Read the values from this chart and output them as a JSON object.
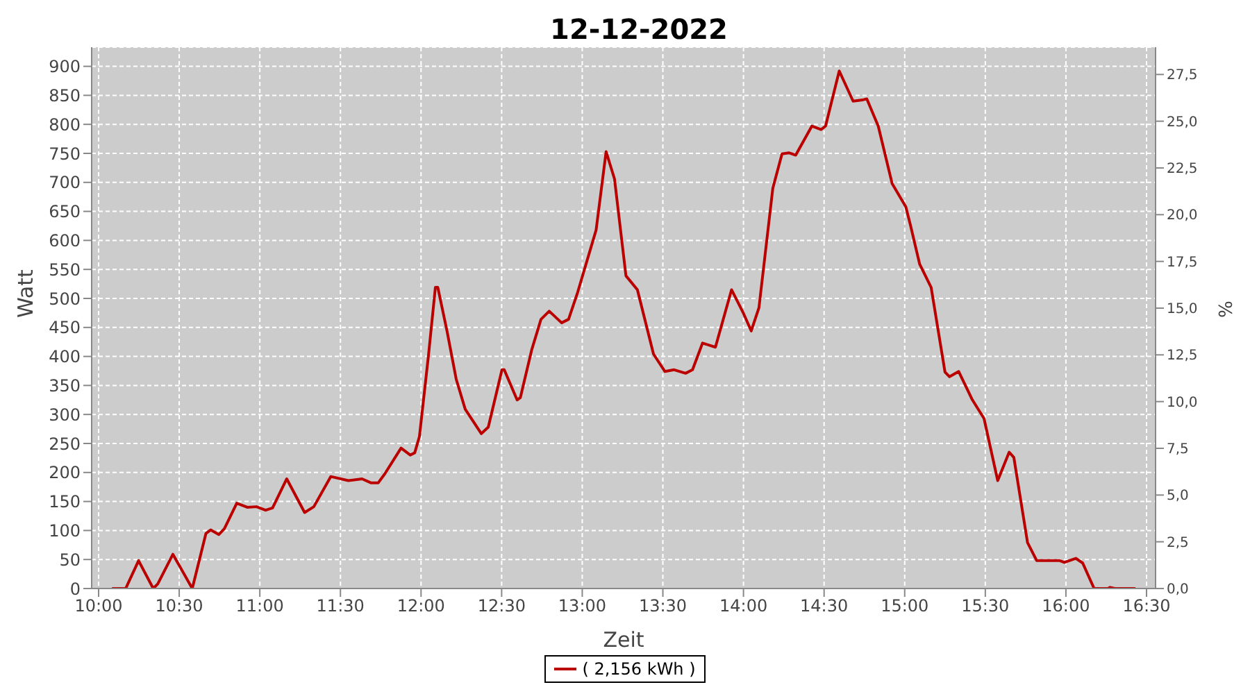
{
  "chart_data": {
    "type": "line",
    "title": "12-12-2022",
    "xlabel": "Zeit",
    "ylabel": "Watt",
    "y2label": "%",
    "x": [
      10.083,
      10.168,
      10.248,
      10.339,
      10.367,
      10.461,
      10.581,
      10.666,
      10.695,
      10.746,
      10.78,
      10.857,
      10.922,
      10.979,
      11.036,
      11.079,
      11.167,
      11.278,
      11.335,
      11.44,
      11.549,
      11.634,
      11.691,
      11.734,
      11.776,
      11.876,
      11.933,
      11.961,
      11.99,
      12.047,
      12.089,
      12.104,
      12.161,
      12.218,
      12.274,
      12.374,
      12.417,
      12.502,
      12.516,
      12.596,
      12.616,
      12.687,
      12.744,
      12.795,
      12.872,
      12.915,
      12.972,
      13.086,
      13.148,
      13.2,
      13.271,
      13.342,
      13.442,
      13.513,
      13.57,
      13.641,
      13.684,
      13.746,
      13.826,
      13.926,
      13.997,
      14.048,
      14.096,
      14.182,
      14.239,
      14.281,
      14.324,
      14.424,
      14.481,
      14.509,
      14.594,
      14.68,
      14.737,
      14.765,
      14.836,
      14.922,
      15.007,
      15.036,
      15.093,
      15.164,
      15.25,
      15.278,
      15.335,
      15.42,
      15.492,
      15.577,
      15.648,
      15.677,
      15.762,
      15.819,
      15.962,
      15.99,
      16.061,
      16.104,
      16.175,
      16.26,
      16.274,
      16.303,
      16.431
    ],
    "series": [
      {
        "name": "( 2,156 kWh )",
        "color": "#bb0000",
        "values": [
          0,
          0,
          48,
          0,
          8,
          59,
          0,
          95,
          101,
          93,
          103,
          147,
          140,
          141,
          135,
          139,
          189,
          131,
          141,
          193,
          186,
          189,
          182,
          182,
          198,
          242,
          230,
          234,
          262,
          404,
          519,
          519,
          444,
          361,
          309,
          267,
          278,
          377,
          377,
          325,
          329,
          412,
          464,
          478,
          458,
          464,
          511,
          618,
          753,
          706,
          539,
          515,
          404,
          374,
          377,
          371,
          377,
          423,
          416,
          515,
          476,
          444,
          484,
          690,
          749,
          751,
          747,
          797,
          791,
          797,
          892,
          840,
          842,
          844,
          797,
          698,
          658,
          626,
          559,
          519,
          373,
          365,
          374,
          325,
          293,
          186,
          235,
          226,
          79,
          48,
          48,
          45,
          52,
          44,
          0,
          0,
          2,
          0,
          0
        ]
      }
    ],
    "xlim": [
      9.957,
      16.556
    ],
    "xticks": [
      {
        "value": 10,
        "label": "10:00"
      },
      {
        "value": 10.5,
        "label": "10:30"
      },
      {
        "value": 11,
        "label": "11:00"
      },
      {
        "value": 11.5,
        "label": "11:30"
      },
      {
        "value": 12,
        "label": "12:00"
      },
      {
        "value": 12.5,
        "label": "12:30"
      },
      {
        "value": 13,
        "label": "13:00"
      },
      {
        "value": 13.5,
        "label": "13:30"
      },
      {
        "value": 14,
        "label": "14:00"
      },
      {
        "value": 14.5,
        "label": "14:30"
      },
      {
        "value": 15,
        "label": "15:00"
      },
      {
        "value": 15.5,
        "label": "15:30"
      },
      {
        "value": 16,
        "label": "16:00"
      },
      {
        "value": 16.5,
        "label": "16:30"
      }
    ],
    "ylim": [
      0,
      933
    ],
    "yticks": [
      0,
      50,
      100,
      150,
      200,
      250,
      300,
      350,
      400,
      450,
      500,
      550,
      600,
      650,
      700,
      750,
      800,
      850,
      900
    ],
    "y2lim": [
      0,
      28.96
    ],
    "y2ticks": [
      {
        "value": 0,
        "label": "0,0"
      },
      {
        "value": 2.5,
        "label": "2,5"
      },
      {
        "value": 5,
        "label": "5,0"
      },
      {
        "value": 7.5,
        "label": "7,5"
      },
      {
        "value": 10,
        "label": "10,0"
      },
      {
        "value": 12.5,
        "label": "12,5"
      },
      {
        "value": 15,
        "label": "15,0"
      },
      {
        "value": 17.5,
        "label": "17,5"
      },
      {
        "value": 20,
        "label": "20,0"
      },
      {
        "value": 22.5,
        "label": "22,5"
      },
      {
        "value": 25,
        "label": "25,0"
      },
      {
        "value": 27.5,
        "label": "27,5"
      }
    ],
    "grid": true,
    "legend": "bottom",
    "marker": "none",
    "line_style": "solid"
  }
}
